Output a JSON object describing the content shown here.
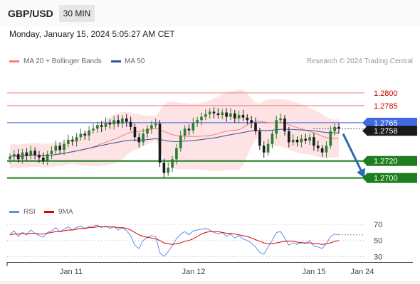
{
  "header": {
    "pair": "GBP/USD",
    "timeframe": "30 MIN",
    "datetime": "Monday, January 15, 2024 5:05:27 AM CET"
  },
  "legend": {
    "ma20": "MA 20 + Bollinger Bands",
    "ma50": "MA 50",
    "credit": "Research © 2024 Trading Central",
    "rsi": "RSI",
    "rsi_ma": "9MA"
  },
  "colors": {
    "ma20": "#f08080",
    "ma50": "#2f5597",
    "band_fill": "#fde3e3",
    "candle_up": "#2e7d32",
    "candle_down": "#1a1a1a",
    "resistance": "#f08080",
    "resistance_label": "#cc0000",
    "support": "#1e7d1e",
    "pivot": "#4169e1",
    "arrow": "#2a6ab0",
    "rsi": "#5b8def",
    "rsi_ma": "#e00000"
  },
  "chart_data": {
    "type": "candlestick",
    "title": "GBP/USD",
    "price_range": [
      1.2673,
      1.283
    ],
    "levels": {
      "resistance": [
        1.28,
        1.2785
      ],
      "pivot": 1.2765,
      "current": 1.2758,
      "support": [
        1.272,
        1.27
      ]
    },
    "price_labels": [
      "1.2800",
      "1.2785",
      "1.2765",
      "1.2758",
      "1.2720",
      "1.2700"
    ],
    "x_ticks": [
      "Jan 11",
      "Jan 12",
      "Jan 15",
      "Jan 24"
    ],
    "forecast": {
      "from": 1.2752,
      "to": 1.27
    },
    "closes": [
      1.2725,
      1.2728,
      1.2722,
      1.273,
      1.2726,
      1.2732,
      1.2727,
      1.2724,
      1.272,
      1.2728,
      1.2732,
      1.2738,
      1.2733,
      1.274,
      1.2745,
      1.2743,
      1.2748,
      1.2752,
      1.275,
      1.2756,
      1.2758,
      1.2762,
      1.276,
      1.2765,
      1.2763,
      1.2768,
      1.2764,
      1.277,
      1.2766,
      1.276,
      1.2748,
      1.2742,
      1.2752,
      1.2758,
      1.2762,
      1.2764,
      1.2718,
      1.2706,
      1.2712,
      1.2722,
      1.2735,
      1.275,
      1.2758,
      1.2756,
      1.2765,
      1.2768,
      1.2772,
      1.2775,
      1.2778,
      1.2776,
      1.2774,
      1.2777,
      1.2772,
      1.2776,
      1.277,
      1.2774,
      1.2771,
      1.2768,
      1.2765,
      1.2755,
      1.2738,
      1.273,
      1.274,
      1.2752,
      1.2768,
      1.277,
      1.2755,
      1.2742,
      1.2745,
      1.2742,
      1.2746,
      1.2744,
      1.2748,
      1.2738,
      1.2735,
      1.273,
      1.2738,
      1.2755,
      1.276,
      1.2758
    ],
    "rsi": {
      "ticks": [
        70,
        50,
        30
      ],
      "range": [
        25,
        78
      ],
      "values": [
        58,
        62,
        55,
        60,
        57,
        63,
        59,
        56,
        54,
        60,
        62,
        66,
        61,
        64,
        67,
        63,
        66,
        68,
        65,
        67,
        68,
        69,
        66,
        68,
        65,
        67,
        63,
        66,
        62,
        56,
        44,
        40,
        50,
        54,
        56,
        55,
        35,
        30,
        36,
        44,
        52,
        58,
        61,
        57,
        62,
        63,
        64,
        65,
        63,
        60,
        58,
        60,
        55,
        58,
        53,
        56,
        52,
        50,
        47,
        42,
        35,
        33,
        42,
        50,
        60,
        61,
        53,
        44,
        47,
        45,
        48,
        46,
        50,
        43,
        42,
        40,
        46,
        55,
        58,
        57
      ],
      "ma9": [
        57,
        58,
        58,
        59,
        58,
        59,
        59,
        58,
        58,
        59,
        60,
        61,
        61,
        62,
        63,
        63,
        64,
        65,
        65,
        66,
        66,
        67,
        67,
        67,
        67,
        67,
        66,
        66,
        65,
        63,
        60,
        57,
        55,
        54,
        53,
        52,
        50,
        47,
        46,
        45,
        46,
        47,
        49,
        50,
        52,
        55,
        58,
        60,
        61,
        61,
        61,
        60,
        59,
        59,
        58,
        57,
        56,
        55,
        53,
        51,
        49,
        47,
        46,
        46,
        47,
        48,
        49,
        49,
        49,
        48,
        47,
        47,
        47,
        46,
        46,
        45,
        46,
        47,
        49,
        50
      ]
    }
  }
}
